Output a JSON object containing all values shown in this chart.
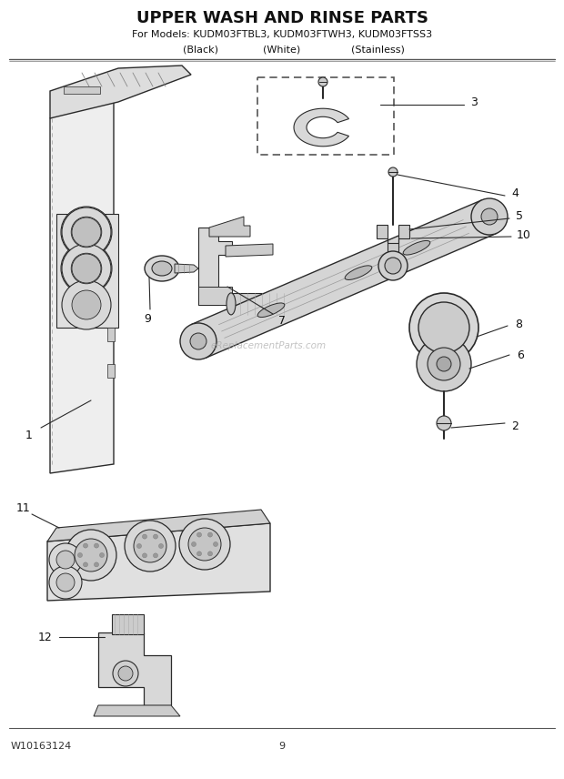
{
  "title": "UPPER WASH AND RINSE PARTS",
  "subtitle": "For Models: KUDM03FTBL3, KUDM03FTWH3, KUDM03FTSS3",
  "subtitle2_black": "(Black)",
  "subtitle2_white": "(White)",
  "subtitle2_stainless": "(Stainless)",
  "footer_left": "W10163124",
  "footer_center": "9",
  "bg_color": "#ffffff",
  "lc": "#2a2a2a",
  "fill_light": "#e8e8e8",
  "fill_mid": "#cccccc",
  "fill_dark": "#aaaaaa",
  "title_fontsize": 13,
  "subtitle_fontsize": 8,
  "label_fontsize": 9,
  "footer_fontsize": 8
}
